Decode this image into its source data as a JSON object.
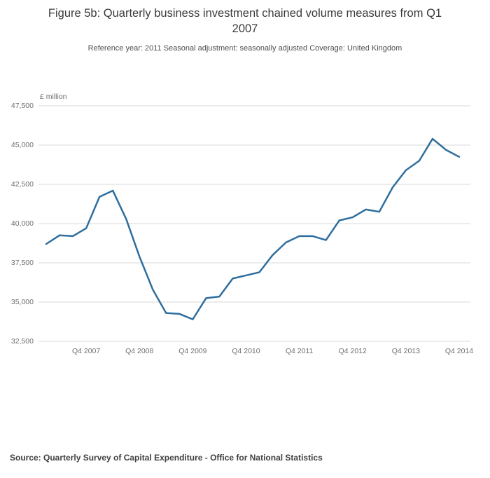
{
  "header": {
    "title": "Figure 5b: Quarterly business investment chained volume measures from Q1 2007",
    "subtitle": "Reference year: 2011 Seasonal adjustment: seasonally adjusted Coverage: United Kingdom"
  },
  "footer": {
    "source": "Source: Quarterly Survey of Capital Expenditure - Office for National Statistics"
  },
  "chart_data": {
    "type": "line",
    "title": "Figure 5b: Quarterly business investment chained volume measures from Q1 2007",
    "ylabel": "£ million",
    "xlabel": "",
    "grid": "horizontal",
    "legend_position": "none",
    "line_color": "#2e6e9e",
    "grid_color": "#d9d9d9",
    "ylim": [
      32500,
      47500
    ],
    "y_ticks": [
      32500,
      35000,
      37500,
      40000,
      42500,
      45000,
      47500
    ],
    "y_tick_labels": [
      "32,500",
      "35,000",
      "37,500",
      "40,000",
      "42,500",
      "45,000",
      "47,500"
    ],
    "x": [
      "Q1 2007",
      "Q2 2007",
      "Q3 2007",
      "Q4 2007",
      "Q1 2008",
      "Q2 2008",
      "Q3 2008",
      "Q4 2008",
      "Q1 2009",
      "Q2 2009",
      "Q3 2009",
      "Q4 2009",
      "Q1 2010",
      "Q2 2010",
      "Q3 2010",
      "Q4 2010",
      "Q1 2011",
      "Q2 2011",
      "Q3 2011",
      "Q4 2011",
      "Q1 2012",
      "Q2 2012",
      "Q3 2012",
      "Q4 2012",
      "Q1 2013",
      "Q2 2013",
      "Q3 2013",
      "Q4 2013",
      "Q1 2014",
      "Q2 2014",
      "Q3 2014",
      "Q4 2014"
    ],
    "x_tick_labels": [
      "Q4 2007",
      "Q4 2008",
      "Q4 2009",
      "Q4 2010",
      "Q4 2011",
      "Q4 2012",
      "Q4 2013",
      "Q4 2014"
    ],
    "values": [
      38700,
      39250,
      39200,
      39700,
      41700,
      42100,
      40300,
      37900,
      35800,
      34300,
      34250,
      33900,
      35250,
      35350,
      36500,
      36700,
      36900,
      38000,
      38800,
      39200,
      39200,
      38950,
      40200,
      40400,
      40900,
      40750,
      42300,
      43400,
      44000,
      45400,
      44700,
      44250
    ]
  }
}
